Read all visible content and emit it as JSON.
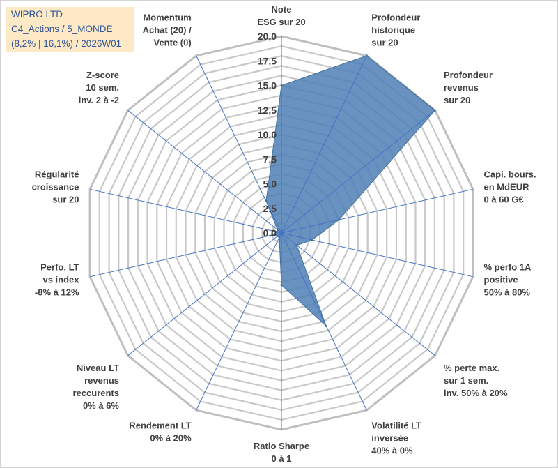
{
  "info": {
    "name": "WIPRO LTD",
    "portfolio": "C4_Actions / 5_MONDE",
    "stats": "(8,2% | 16,1%) / 2026W01"
  },
  "colors": {
    "grid": "#c8c8c8",
    "spoke": "#4472c4",
    "fill": "#4f7fb5",
    "stroke": "#41719c",
    "text": "#404040",
    "box": "#fde9c5",
    "box_text": "#2f5597"
  },
  "chart_data": {
    "type": "radar",
    "range": [
      0,
      20
    ],
    "grid_step": 1,
    "ticks": [
      {
        "value": 0,
        "label": "0,0"
      },
      {
        "value": 2.5,
        "label": "2,5"
      },
      {
        "value": 5,
        "label": "5,0"
      },
      {
        "value": 7.5,
        "label": "7,5"
      },
      {
        "value": 10,
        "label": "10,0"
      },
      {
        "value": 12.5,
        "label": "12,5"
      },
      {
        "value": 15,
        "label": "15,0"
      },
      {
        "value": 17.5,
        "label": "17,5"
      },
      {
        "value": 20,
        "label": "20,0"
      }
    ],
    "categories": [
      {
        "label": [
          "Note",
          "ESG sur 20"
        ],
        "value": 15.0
      },
      {
        "label": [
          "Profondeur",
          "historique",
          "sur 20"
        ],
        "value": 20.0
      },
      {
        "label": [
          "Profondeur",
          "revenus",
          "sur 20"
        ],
        "value": 20.0
      },
      {
        "label": [
          "Capi. bours.",
          "en MdEUR",
          "0 à 60 G€"
        ],
        "value": 6.0
      },
      {
        "label": [
          "% perfo 1A",
          "positive",
          "50% à 80%"
        ],
        "value": 3.2
      },
      {
        "label": [
          "% perte max.",
          "sur 1 sem.",
          "inv. 50% à 20%"
        ],
        "value": 2.0
      },
      {
        "label": [
          "Volatilité LT",
          "inversée",
          "40% à 0%"
        ],
        "value": 10.5
      },
      {
        "label": [
          "Ratio Sharpe",
          "0 à 1"
        ],
        "value": 5.3
      },
      {
        "label": [
          "Rendement LT",
          "0% à 20%"
        ],
        "value": 0.5
      },
      {
        "label": [
          "Niveau LT",
          "revenus",
          "reccurents",
          "0% à 6%"
        ],
        "value": 0.5
      },
      {
        "label": [
          "Perfo. LT",
          "vs index",
          "-8% à 12%"
        ],
        "value": 1.0
      },
      {
        "label": [
          "Régularité",
          "croissance",
          "sur 20"
        ],
        "value": 0.5
      },
      {
        "label": [
          "Z-score",
          "10 sem.",
          "inv. 2 à -2"
        ],
        "value": 0.5
      },
      {
        "label": [
          "Momentum",
          "Achat (20) /",
          "Vente (0)"
        ],
        "value": 3.6
      }
    ]
  }
}
